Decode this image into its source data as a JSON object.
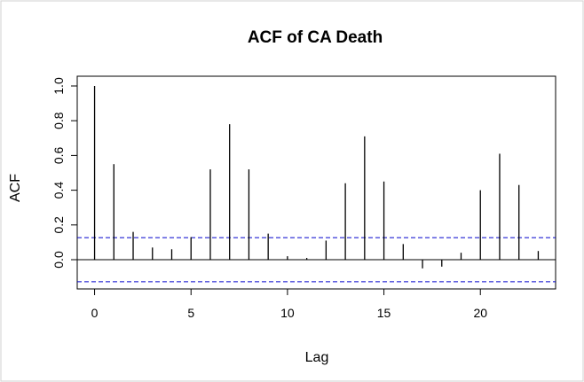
{
  "chart_data": {
    "type": "bar",
    "title": "ACF of CA Death",
    "xlabel": "Lag",
    "ylabel": "ACF",
    "x": [
      0,
      1,
      2,
      3,
      4,
      5,
      6,
      7,
      8,
      9,
      10,
      11,
      12,
      13,
      14,
      15,
      16,
      17,
      18,
      19,
      20,
      21,
      22,
      23
    ],
    "values": [
      1.0,
      0.55,
      0.16,
      0.07,
      0.06,
      0.13,
      0.52,
      0.78,
      0.52,
      0.15,
      0.02,
      0.01,
      0.11,
      0.44,
      0.71,
      0.45,
      0.09,
      -0.05,
      -0.04,
      0.04,
      0.4,
      0.61,
      0.43,
      0.05
    ],
    "xlim": [
      -0.9,
      23.9
    ],
    "ylim": [
      -0.165,
      1.0
    ],
    "xticks": [
      0,
      5,
      10,
      15,
      20
    ],
    "yticks": [
      0.0,
      0.2,
      0.4,
      0.6,
      0.8,
      1.0
    ],
    "xtick_labels": [
      "0",
      "5",
      "10",
      "15",
      "20"
    ],
    "ytick_labels": [
      "0.0",
      "0.2",
      "0.4",
      "0.6",
      "0.8",
      "1.0"
    ],
    "confidence_bounds": [
      0.127,
      -0.127
    ],
    "zero_line": true,
    "grid": false,
    "colors": {
      "bars": "#000000",
      "bounds": "#0000cc"
    }
  }
}
